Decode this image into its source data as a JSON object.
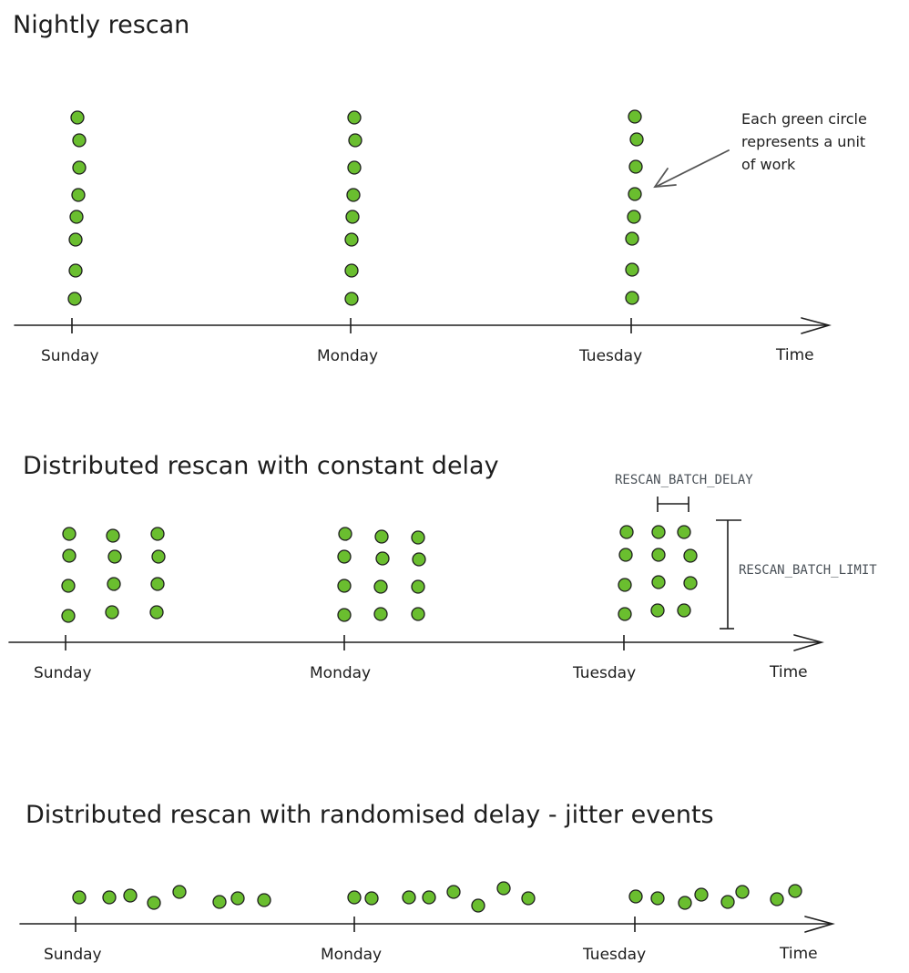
{
  "panels": [
    {
      "title": "Nightly rescan",
      "days": [
        "Sunday",
        "Monday",
        "Tuesday"
      ],
      "axis_end_label": "Time",
      "note": [
        "Each green circle",
        "represents a unit",
        "of work"
      ]
    },
    {
      "title": "Distributed rescan with constant delay",
      "days": [
        "Sunday",
        "Monday",
        "Tuesday"
      ],
      "axis_end_label": "Time",
      "delay_label": "RESCAN_BATCH_DELAY",
      "limit_label": "RESCAN_BATCH_LIMIT"
    },
    {
      "title": "Distributed rescan with randomised delay - jitter events",
      "days": [
        "Sunday",
        "Monday",
        "Tuesday"
      ],
      "axis_end_label": "Time"
    }
  ],
  "colors": {
    "unit_fill": "#6abe2f",
    "stroke": "#1e1e1e",
    "param_text": "#495057"
  }
}
